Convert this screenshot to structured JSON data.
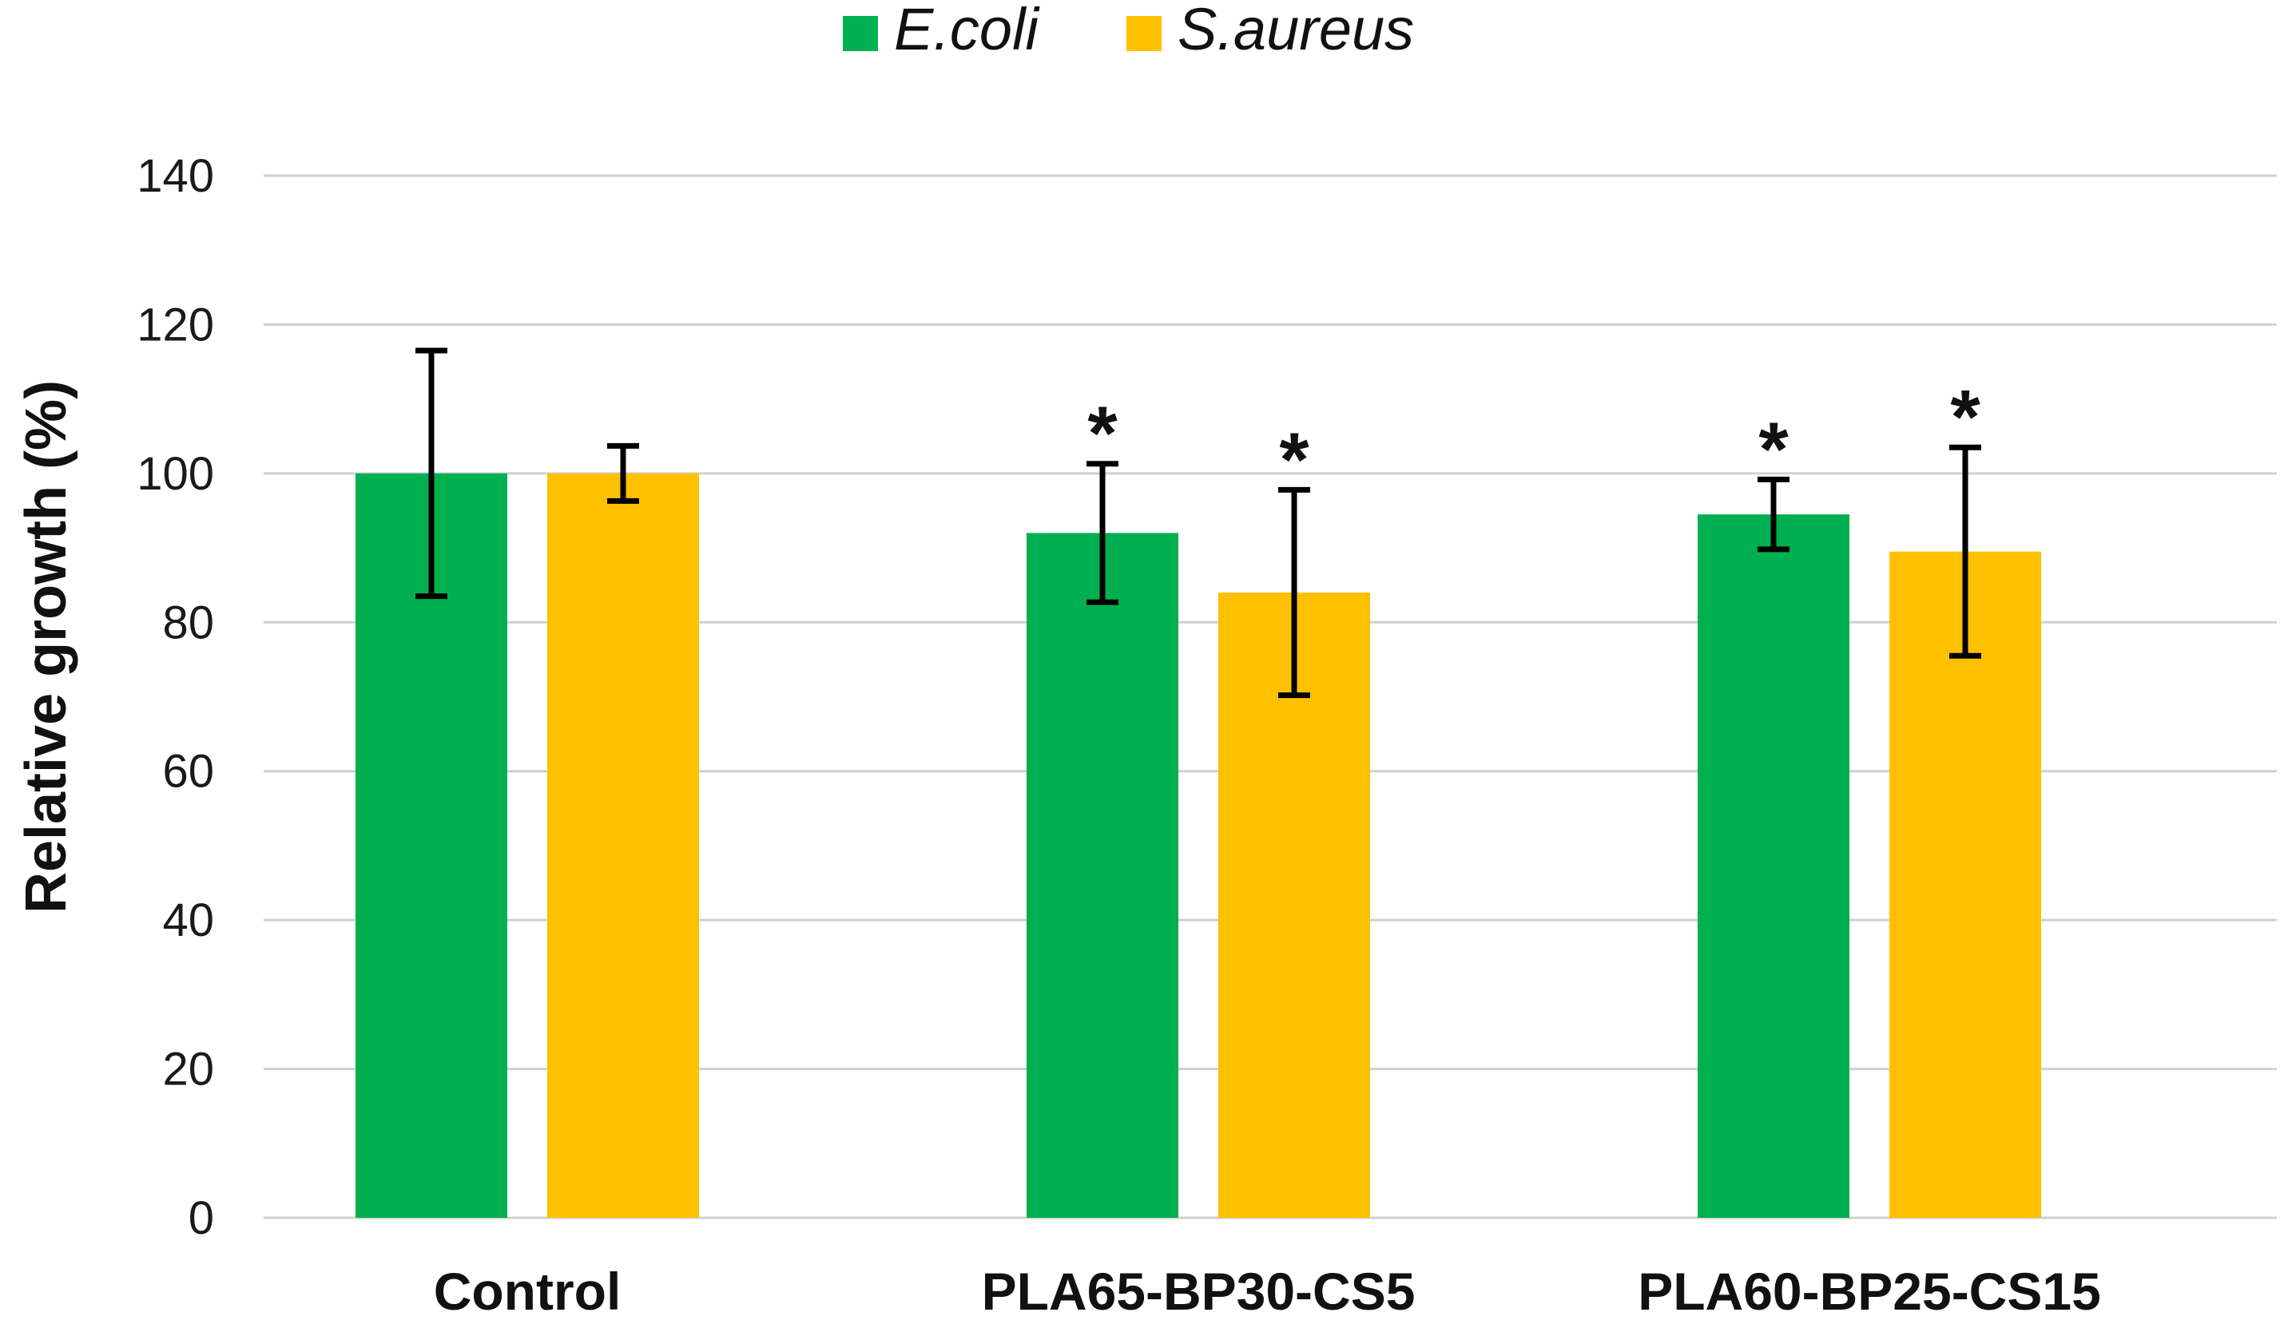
{
  "chart_data": {
    "type": "bar",
    "title": "",
    "xlabel": "",
    "ylabel": "Relative growth (%)",
    "ylim": [
      0,
      140
    ],
    "yticks": [
      0,
      20,
      40,
      60,
      80,
      100,
      120,
      140
    ],
    "grid": true,
    "legend_position": "top-center",
    "categories": [
      "Control",
      "PLA65-BP30-CS5",
      "PLA60-BP25-CS15"
    ],
    "series": [
      {
        "name": "E.coli",
        "color": "#00B050",
        "values": [
          100,
          92,
          94.5
        ],
        "errors": [
          16.5,
          9.3,
          4.7
        ],
        "significance": [
          "",
          "*",
          "*"
        ]
      },
      {
        "name": "S.aureus",
        "color": "#FFC000",
        "values": [
          100,
          84,
          89.5
        ],
        "errors": [
          3.7,
          13.8,
          14
        ],
        "significance": [
          "",
          "*",
          "*"
        ]
      }
    ]
  }
}
